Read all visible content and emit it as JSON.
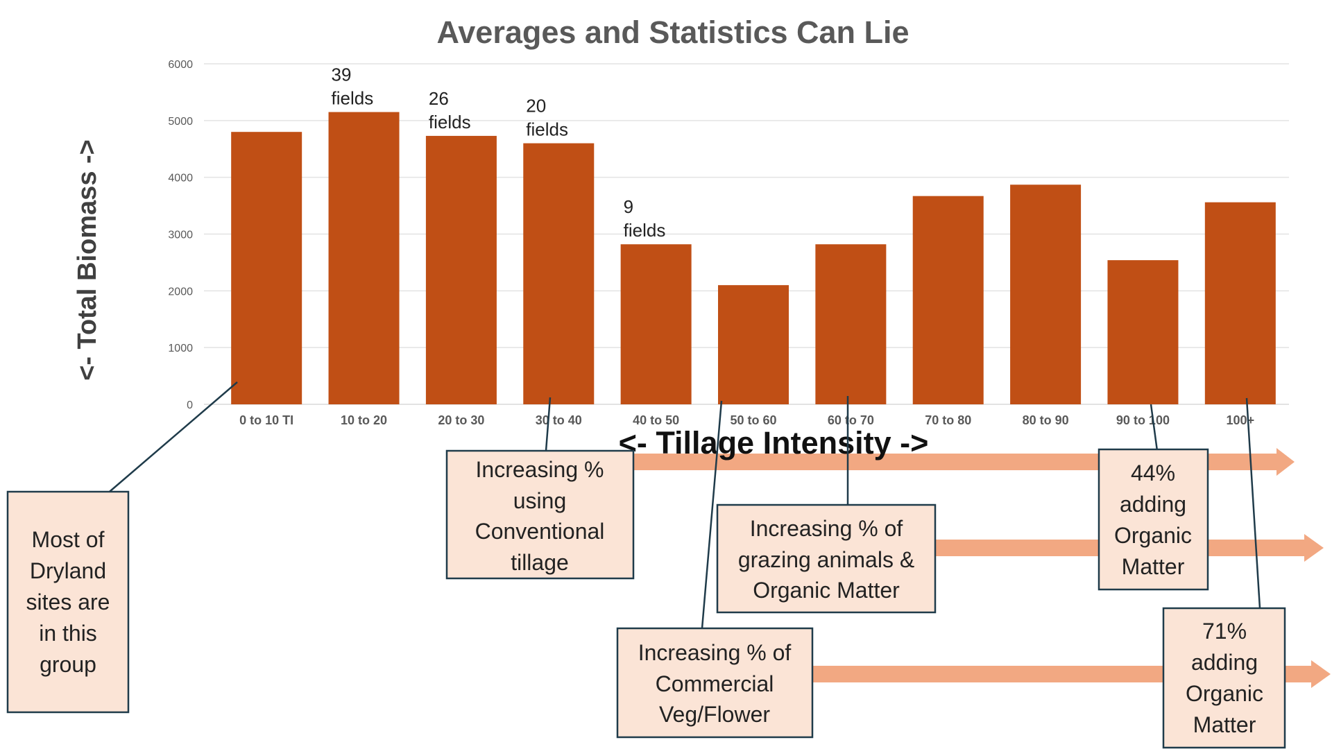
{
  "chart_data": {
    "type": "bar",
    "title": "Averages and Statistics Can Lie",
    "xlabel": "<- Tillage Intensity ->",
    "ylabel": "<- Total Biomass ->",
    "ylim": [
      0,
      6000
    ],
    "yticks": [
      0,
      1000,
      2000,
      3000,
      4000,
      5000,
      6000
    ],
    "grid": true,
    "categories": [
      "0 to 10 TI",
      "10 to 20",
      "20 to 30",
      "30 to 40",
      "40 to 50",
      "50 to 60",
      "60 to 70",
      "70 to 80",
      "80 to 90",
      "90 to 100",
      "100+"
    ],
    "values": [
      4800,
      5150,
      4730,
      4600,
      2820,
      2100,
      2820,
      3670,
      3870,
      2540,
      3560
    ],
    "color": "#c04f15",
    "bar_labels": [
      {
        "category": "10 to 20",
        "line1": "39",
        "line2": "fields"
      },
      {
        "category": "20 to 30",
        "line1": "26",
        "line2": "fields"
      },
      {
        "category": "30 to 40",
        "line1": "20",
        "line2": "fields"
      },
      {
        "category": "40 to 50",
        "line1": "9",
        "line2": "fields"
      }
    ]
  },
  "annotations": {
    "dryland": {
      "lines": [
        "Most of",
        "Dryland",
        "sites are",
        "in this",
        "group"
      ]
    },
    "conventional": {
      "lines": [
        "Increasing %",
        "using",
        "Conventional",
        "tillage"
      ]
    },
    "grazing": {
      "lines": [
        "Increasing % of",
        "grazing animals &",
        "Organic Matter"
      ]
    },
    "commercial": {
      "lines": [
        "Increasing % of",
        "Commercial",
        "Veg/Flower"
      ]
    },
    "om44": {
      "lines": [
        "44%",
        "adding",
        "Organic",
        "Matter"
      ]
    },
    "om71": {
      "lines": [
        "71%",
        "adding",
        "Organic",
        "Matter"
      ]
    }
  },
  "colors": {
    "bar": "#c04f15",
    "arrow": "#f2a882",
    "box_fill": "#fbe4d6",
    "box_border": "#1f3b4a"
  }
}
